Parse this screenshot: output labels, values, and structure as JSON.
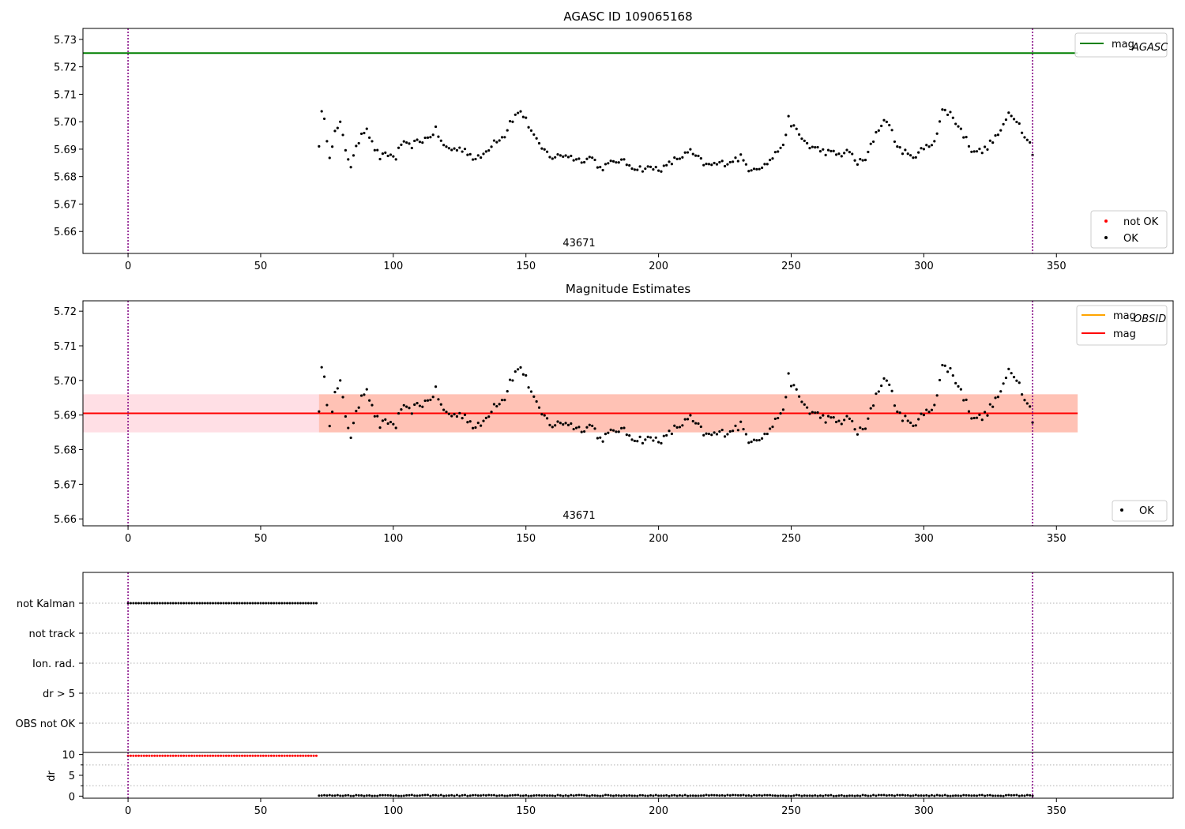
{
  "colors": {
    "agasc_line": "#008000",
    "obsid_line": "#ffa500",
    "mag_line": "#ff0000",
    "not_ok": "#ff0000",
    "ok": "#000000",
    "vline": "#800080",
    "band_outer": "#ffc0cb",
    "band_inner": "#ffa07a"
  },
  "chart_data": [
    {
      "type": "scatter",
      "title": "AGASC ID 109065168",
      "annotation": "43671",
      "xlim": [
        -17,
        394
      ],
      "ylim": [
        5.652,
        5.734
      ],
      "xticks": [
        0,
        50,
        100,
        150,
        200,
        250,
        300,
        350
      ],
      "yticks": [
        5.66,
        5.67,
        5.68,
        5.69,
        5.7,
        5.71,
        5.72,
        5.73
      ],
      "ytick_labels": [
        "5.66",
        "5.67",
        "5.68",
        "5.69",
        "5.70",
        "5.71",
        "5.72",
        "5.73"
      ],
      "vlines": [
        0,
        341
      ],
      "hline": {
        "value": 5.725,
        "xmax": 358
      },
      "legend_top": [
        {
          "label": "mag",
          "sub": "AGASC",
          "kind": "line",
          "color": "#008000"
        }
      ],
      "legend_bottom": [
        {
          "label": "not OK",
          "kind": "dot",
          "color": "#ff0000"
        },
        {
          "label": "OK",
          "kind": "dot",
          "color": "#000000"
        }
      ]
    },
    {
      "type": "scatter",
      "title": "Magnitude Estimates",
      "annotation": "43671",
      "xlim": [
        -17,
        394
      ],
      "ylim": [
        5.658,
        5.723
      ],
      "xticks": [
        0,
        50,
        100,
        150,
        200,
        250,
        300,
        350
      ],
      "yticks": [
        5.66,
        5.67,
        5.68,
        5.69,
        5.7,
        5.71,
        5.72
      ],
      "ytick_labels": [
        "5.66",
        "5.67",
        "5.68",
        "5.69",
        "5.70",
        "5.71",
        "5.72"
      ],
      "vlines": [
        0,
        341
      ],
      "mag_mean": 5.6905,
      "band_outer": [
        5.685,
        5.696
      ],
      "band_inner": [
        5.685,
        5.696
      ],
      "band_outer_x": [
        -17,
        358
      ],
      "band_inner_x": [
        72,
        358
      ],
      "legend_top": [
        {
          "label": "mag",
          "sub": "OBSID",
          "kind": "line",
          "color": "#ffa500"
        },
        {
          "label": "mag",
          "kind": "line",
          "color": "#ff0000"
        }
      ],
      "legend_bottom": [
        {
          "label": "OK",
          "kind": "dot",
          "color": "#000000"
        }
      ]
    },
    {
      "type": "scatter",
      "title": "",
      "xlim": [
        -17,
        394
      ],
      "categories": [
        "not Kalman",
        "not track",
        "Ion. rad.",
        "dr > 5",
        "OBS not OK"
      ],
      "flag_ranges": [
        {
          "category": "not Kalman",
          "x_start": 0,
          "x_end": 71
        }
      ],
      "vlines": [
        0,
        341
      ]
    },
    {
      "type": "scatter",
      "title": "",
      "ylabel": "dr",
      "xlim": [
        -17,
        394
      ],
      "ylim": [
        -0.5,
        10.5
      ],
      "xticks": [
        0,
        50,
        100,
        150,
        200,
        250,
        300,
        350
      ],
      "yticks": [
        0,
        5,
        10
      ],
      "ytick_labels": [
        "0",
        "5",
        "10"
      ],
      "vlines": [
        0,
        341
      ],
      "high": {
        "x_start": 0,
        "x_end": 71,
        "value": 9.7
      },
      "low": {
        "x_start": 72,
        "x_end": 341,
        "value": 0.15
      }
    }
  ],
  "mag_series": {
    "x_start": 72,
    "x_end": 341,
    "anchors_x": [
      72,
      73,
      74,
      76,
      78,
      80,
      82,
      84,
      88,
      90,
      92,
      95,
      98,
      101,
      103,
      106,
      110,
      113,
      116,
      119,
      122,
      127,
      131,
      134,
      138,
      142,
      144,
      147,
      148,
      152,
      155,
      160,
      165,
      170,
      175,
      178,
      185,
      192,
      197,
      202,
      206,
      212,
      218,
      225,
      231,
      234,
      240,
      244,
      248,
      249,
      253,
      257,
      263,
      268,
      272,
      275,
      278,
      282,
      284,
      286,
      290,
      295,
      300,
      303,
      305,
      307,
      310,
      314,
      318,
      322,
      326,
      330,
      332,
      335,
      337,
      339,
      340,
      341
    ],
    "anchors_y": [
      5.692,
      5.703,
      5.7,
      5.688,
      5.696,
      5.699,
      5.69,
      5.684,
      5.696,
      5.698,
      5.692,
      5.687,
      5.688,
      5.687,
      5.692,
      5.691,
      5.693,
      5.694,
      5.697,
      5.691,
      5.69,
      5.69,
      5.686,
      5.688,
      5.693,
      5.695,
      5.7,
      5.703,
      5.704,
      5.697,
      5.691,
      5.687,
      5.688,
      5.686,
      5.687,
      5.683,
      5.686,
      5.683,
      5.683,
      5.683,
      5.686,
      5.689,
      5.684,
      5.685,
      5.687,
      5.683,
      5.684,
      5.688,
      5.694,
      5.701,
      5.695,
      5.691,
      5.689,
      5.688,
      5.689,
      5.685,
      5.686,
      5.696,
      5.699,
      5.701,
      5.691,
      5.687,
      5.69,
      5.692,
      5.696,
      5.704,
      5.703,
      5.697,
      5.69,
      5.689,
      5.693,
      5.698,
      5.703,
      5.701,
      5.697,
      5.694,
      5.692,
      5.689
    ],
    "jitter": 0.0012
  }
}
